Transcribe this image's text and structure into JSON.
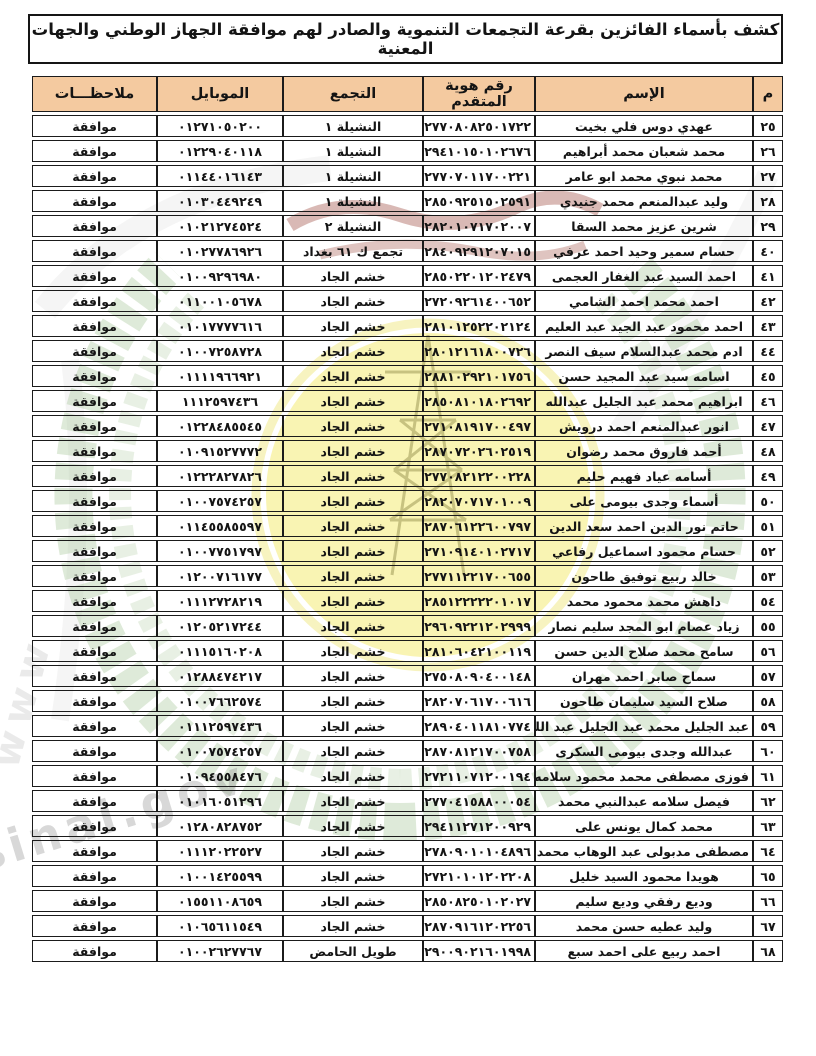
{
  "page": {
    "title": "كشف بأسماء الفائزين بقرعة التجمعات التنموية والصادر لهم موافقة الجهاز الوطني والجهات المعنية"
  },
  "colors": {
    "header_bg": "#f4caa0",
    "border": "#1b1b1b",
    "wreath_green": "#a9c79b",
    "disc_yellow": "#f8f2a6",
    "watermark_gray": "#9a9a9a"
  },
  "watermark": {
    "text": "www.northsinai.gov",
    "side_text": "www"
  },
  "table": {
    "headers": {
      "no": "م",
      "name": "الإسم",
      "id": "رقم هوية المتقدم",
      "group": "التجمع",
      "mobile": "الموبايل",
      "note": "ملاحظـــات"
    },
    "rows": [
      {
        "no": "٢٥",
        "name": "عهدي دوس فلي بخيت",
        "id": "٢٧٧٠٨٠٨٢٥٠١٧٢٢",
        "group": "النشيلة ١",
        "mobile": "٠١٢٧١٠٥٠٢٠٠",
        "note": "موافقة"
      },
      {
        "no": "٢٦",
        "name": "محمد شعبان محمد أبراهيم",
        "id": "٢٩٤١٠١٥٠١٠٢٦٧٦",
        "group": "النشيلة ١",
        "mobile": "٠١٢٢٩٠٤٠١١٨",
        "note": "موافقة"
      },
      {
        "no": "٢٧",
        "name": "محمد نبوي محمد ابو عامر",
        "id": "٢٧٧٠٧٠١١٧٠٠٢٢١",
        "group": "النشيلة ١",
        "mobile": "٠١١٤٤٠١٦١٤٣",
        "note": "موافقة"
      },
      {
        "no": "٢٨",
        "name": "وليد عبدالمنعم محمد جنيدي",
        "id": "٢٨٥٠٩٢٥١٥٠٢٥٩١",
        "group": "النشيلة ١",
        "mobile": "٠١٠٣٠٤٤٩٢٤٩",
        "note": "موافقة"
      },
      {
        "no": "٢٩",
        "name": "شرين عزيز محمد السقا",
        "id": "٢٨٢٠١٠٧١٧٠٢٠٠٧",
        "group": "النشيلة ٢",
        "mobile": "٠١٠٢١٢٧٤٥٢٤",
        "note": "موافقة"
      },
      {
        "no": "٤٠",
        "name": "حسام سمير وحيد احمد عرفي",
        "id": "٢٨٤٠٩٢٩١٢٠٧٠١٥",
        "group": "تجمع ك ٦١ بغداد",
        "mobile": "٠١٠٢٧٧٨٦٩٢٦",
        "note": "موافقة"
      },
      {
        "no": "٤١",
        "name": "احمد السيد عبد الغفار العجمى",
        "id": "٢٨٥٠٢٢٠١٢٠٢٤٧٩",
        "group": "خشم الجاد",
        "mobile": "٠١٠٠٩٢٩٦٩٨٠",
        "note": "موافقة"
      },
      {
        "no": "٤٢",
        "name": "احمد محمد احمد الشامي",
        "id": "٢٧٢٠٩٢٦١٤٠٠٦٥٢",
        "group": "خشم الجاد",
        "mobile": "٠١١٠٠١٠٥٦٧٨",
        "note": "موافقة"
      },
      {
        "no": "٤٣",
        "name": "احمد محمود عبد الجيد عبد العليم",
        "id": "٢٨١٠١٢٥٢٢٠٢١٢٤",
        "group": "خشم الجاد",
        "mobile": "٠١٠١٧٧٧٧٦١٦",
        "note": "موافقة"
      },
      {
        "no": "٤٤",
        "name": "ادم محمد عبدالسلام سيف النصر",
        "id": "٢٨٠١٢١٦١٨٠٠٧٢٦",
        "group": "خشم الجاد",
        "mobile": "٠١٠٠٧٢٥٨٧٢٨",
        "note": "موافقة"
      },
      {
        "no": "٤٥",
        "name": "اسامه سيد عبد المجيد حسن",
        "id": "٢٨٨١٠٢٩٢١٠١٧٥٦",
        "group": "خشم الجاد",
        "mobile": "٠١١١١٩٦٦٩٢١",
        "note": "موافقة"
      },
      {
        "no": "٤٦",
        "name": "ابراهيم محمد عبد الجليل عبدالله",
        "id": "٢٨٥٠٨١٠١٨٠٢٦٩٢",
        "group": "خشم الجاد",
        "mobile": "١١١٢٥٩٧٤٣٦",
        "note": "موافقة"
      },
      {
        "no": "٤٧",
        "name": "انور عبدالمنعم احمد درويش",
        "id": "٢٧١٠٨١٩١٧٠٠٤٩٧",
        "group": "خشم الجاد",
        "mobile": "٠١٢٢٨٤٨٥٥٤٥",
        "note": "موافقة"
      },
      {
        "no": "٤٨",
        "name": "أحمد فاروق محمد رضوان",
        "id": "٢٨٧٠٧٢٠٢٦٠٢٥١٩",
        "group": "خشم الجاد",
        "mobile": "٠١٠٩١٥٢٧٧٧٢",
        "note": "موافقة"
      },
      {
        "no": "٤٩",
        "name": "أسامه عياد فهيم حليم",
        "id": "٢٧٧٠٨٢١٢٢٠٠٢٢٨",
        "group": "خشم الجاد",
        "mobile": "٠١٢٢٢٨٢٧٨٢٦",
        "note": "موافقة"
      },
      {
        "no": "٥٠",
        "name": "أسماء وجدى بيومى على",
        "id": "٢٨٢٠٧٠٧١٧٠١٠٠٩",
        "group": "خشم الجاد",
        "mobile": "٠١٠٠٧٥٧٤٢٥٧",
        "note": "موافقة"
      },
      {
        "no": "٥١",
        "name": "حاتم نور الدين احمد سعد الدين",
        "id": "٢٨٧٠٦١٢٢٦٠٠٧٩٧",
        "group": "خشم الجاد",
        "mobile": "٠١١٤٥٥٨٥٥٩٧",
        "note": "موافقة"
      },
      {
        "no": "٥٢",
        "name": "حسام محمود اسماعيل رفاعي",
        "id": "٢٧١٠٩١٤٠١٠٢٧١٧",
        "group": "خشم الجاد",
        "mobile": "٠١٠٠٧٧٥١٧٩٧",
        "note": "موافقة"
      },
      {
        "no": "٥٣",
        "name": "خالد ربيع توفيق طاحون",
        "id": "٢٧٧١١٢٢١٧٠٠٦٥٥",
        "group": "خشم الجاد",
        "mobile": "٠١٢٠٠٧١٦١٧٧",
        "note": "موافقة"
      },
      {
        "no": "٥٤",
        "name": "داهش محمد محمود محمد",
        "id": "٢٨٥١٢٢٢٢٢٠١٠١٧",
        "group": "خشم الجاد",
        "mobile": "٠١١١٢٧٢٨٢١٩",
        "note": "موافقة"
      },
      {
        "no": "٥٥",
        "name": "زياد عصام ابو المجد سليم نصار",
        "id": "٢٩٦٠٩٢٢١٢٠٢٩٩٩",
        "group": "خشم الجاد",
        "mobile": "٠١٢٠٥٢١٧٢٤٤",
        "note": "موافقة"
      },
      {
        "no": "٥٦",
        "name": "سامح محمد صلاح الدين حسن",
        "id": "٢٨١٠٦٠٤٢١٠٠١١٩",
        "group": "خشم الجاد",
        "mobile": "٠١١١٥١٦٠٢٠٨",
        "note": "موافقة"
      },
      {
        "no": "٥٧",
        "name": "سماح صابر احمد مهران",
        "id": "٢٧٥٠٨٠٩٠٤٠٠١٤٨",
        "group": "خشم الجاد",
        "mobile": "٠١٢٨٨٤٧٤٢١٧",
        "note": "موافقة"
      },
      {
        "no": "٥٨",
        "name": "صلاح السيد سليمان طاحون",
        "id": "٢٨٢٠٧٠٦١٧٠٠٦١٦",
        "group": "خشم الجاد",
        "mobile": "٠١٠٠٧٦٦٢٥٧٤",
        "note": "موافقة"
      },
      {
        "no": "٥٩",
        "name": "عبد الجليل محمد عبد الجليل عبد الله",
        "id": "٢٨٩٠٤٠١١٨١٠٧٧٤",
        "group": "خشم الجاد",
        "mobile": "٠١١١٢٥٩٧٤٣٦",
        "note": "موافقة"
      },
      {
        "no": "٦٠",
        "name": "عبدالله وجدى بيومى السكرى",
        "id": "٢٨٧٠٨١٢١٧٠٠٧٥٨",
        "group": "خشم الجاد",
        "mobile": "٠١٠٠٧٥٧٤٢٥٧",
        "note": "موافقة"
      },
      {
        "no": "٦١",
        "name": "فوزى مصطفى محمد محمود سلامه",
        "id": "٢٧٢١١٠٧١٢٠٠١٩٤",
        "group": "خشم الجاد",
        "mobile": "٠١٠٩٤٥٥٨٤٧٦",
        "note": "موافقة"
      },
      {
        "no": "٦٢",
        "name": "فيصل سلامه عبدالنبي محمد",
        "id": "٢٧٧٠٤١٥٨٨٠٠٠٥٤",
        "group": "خشم الجاد",
        "mobile": "٠١٠١٦٠٥١٢٩٦",
        "note": "موافقة"
      },
      {
        "no": "٦٣",
        "name": "محمد كمال يونس على",
        "id": "٢٩٤١١٢٧١٢٠٠٩٢٩",
        "group": "خشم الجاد",
        "mobile": "٠١٢٨٠٨٢٨٧٥٢",
        "note": "موافقة"
      },
      {
        "no": "٦٤",
        "name": "مصطفى مدبولى عبد الوهاب محمد على",
        "id": "٢٧٨٠٩٠١٠١٠٤٨٩٦",
        "group": "خشم الجاد",
        "mobile": "٠١١١٢٠٢٢٥٢٧",
        "note": "موافقة"
      },
      {
        "no": "٦٥",
        "name": "هويدا محمود السيد خليل",
        "id": "٢٧٢١٠١٠١٢٠٢٢٠٨",
        "group": "خشم الجاد",
        "mobile": "٠١٠٠١٤٢٥٥٩٩",
        "note": "موافقة"
      },
      {
        "no": "٦٦",
        "name": "وديع رفقي وديع سليم",
        "id": "٢٨٥٠٨٢٥٠١٠٢٠٢٧",
        "group": "خشم الجاد",
        "mobile": "٠١٥٥١١٠٨٦٥٩",
        "note": "موافقة"
      },
      {
        "no": "٦٧",
        "name": "وليد عطيه حسن محمد",
        "id": "٢٨٧٠٩١٦١٢٠٢٢٥٦",
        "group": "خشم الجاد",
        "mobile": "٠١٠٦٥٦١١٥٤٩",
        "note": "موافقة"
      },
      {
        "no": "٦٨",
        "name": "احمد ربيع على احمد سبع",
        "id": "٢٩٠٠٩٠٢١٦٠١٩٩٨",
        "group": "طويل الحامض",
        "mobile": "٠١٠٠٢٦٢٧٧٦٧",
        "note": "موافقة"
      }
    ]
  }
}
